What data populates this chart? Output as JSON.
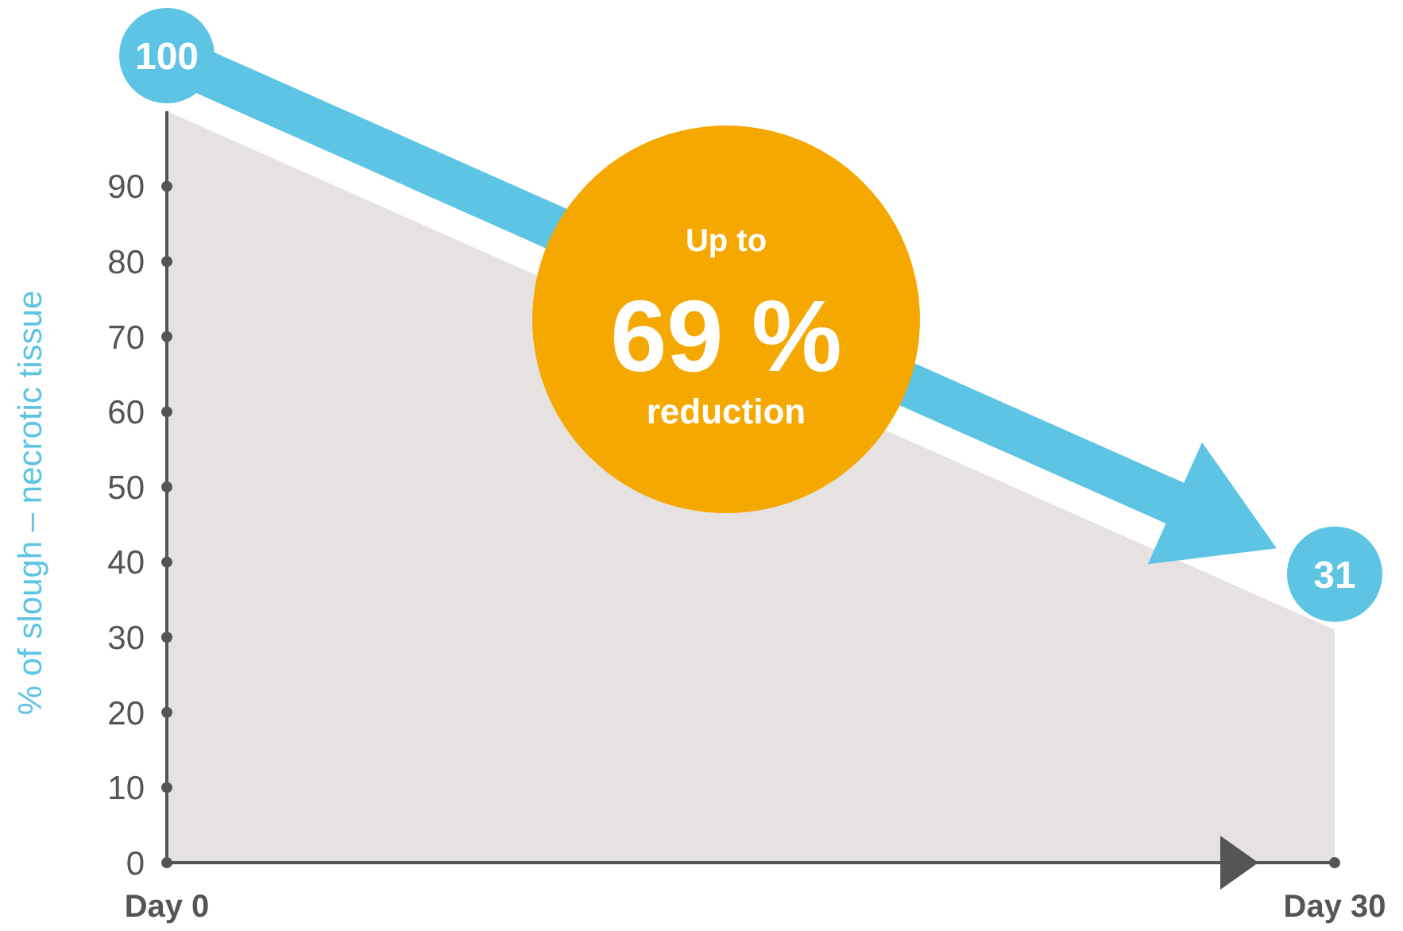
{
  "chart_data": {
    "type": "area",
    "ylabel": "% of slough – necrotic tissue",
    "categories": [
      "Day 0",
      "Day 30"
    ],
    "series": [
      {
        "color": "#e6e2e1",
        "values": [
          100,
          31
        ]
      }
    ],
    "ylim": [
      0,
      100
    ],
    "yticks": [
      0,
      10,
      20,
      30,
      40,
      50,
      60,
      70,
      80,
      90
    ],
    "data_labels": true,
    "annotations": [
      "Up to",
      "69 %",
      "reduction"
    ]
  }
}
